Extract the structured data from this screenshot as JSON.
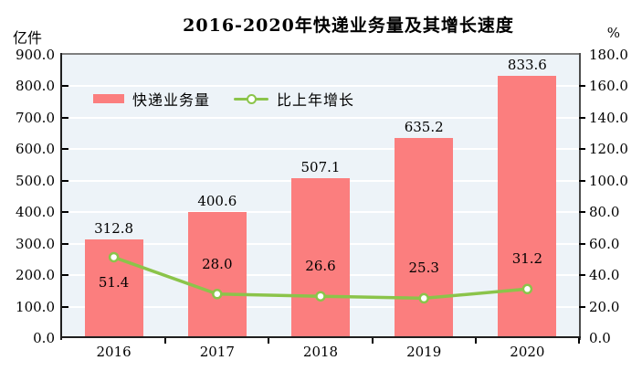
{
  "header": {
    "title": "2016-2020年快递业务量及其增长速度",
    "left_unit": "亿件",
    "right_unit": "%"
  },
  "colors": {
    "bar": "#FB7E7E",
    "line": "#8BC44A",
    "marker_fill": "#FFFFFF",
    "plot_bg": "#EDF3F8",
    "grid": "#FFFFFF",
    "axis_dark": "#1F1F1F",
    "axis_top": "#7F7F7F",
    "axis_right": "#4D4D4D",
    "text": "#000000"
  },
  "chart_data": {
    "type": "bar",
    "title": "2016-2020年快递业务量及其增长速度",
    "categories": [
      "2016",
      "2017",
      "2018",
      "2019",
      "2020"
    ],
    "series": [
      {
        "name": "快递业务量",
        "type": "bar",
        "axis": "left",
        "values": [
          312.8,
          400.6,
          507.1,
          635.2,
          833.6
        ],
        "labels": [
          "312.8",
          "400.6",
          "507.1",
          "635.2",
          "833.6"
        ]
      },
      {
        "name": "比上年增长",
        "type": "line",
        "axis": "right",
        "values": [
          51.4,
          28.0,
          26.6,
          25.3,
          31.2
        ],
        "labels": [
          "51.4",
          "28.0",
          "26.6",
          "25.3",
          "31.2"
        ]
      }
    ],
    "left_axis": {
      "unit": "亿件",
      "min": 0,
      "max": 900,
      "step": 100,
      "tick_labels": [
        "0.0",
        "100.0",
        "200.0",
        "300.0",
        "400.0",
        "500.0",
        "600.0",
        "700.0",
        "800.0",
        "900.0"
      ]
    },
    "right_axis": {
      "unit": "%",
      "min": 0,
      "max": 180,
      "step": 20,
      "tick_labels": [
        "0.0",
        "20.0",
        "40.0",
        "60.0",
        "80.0",
        "100.0",
        "120.0",
        "140.0",
        "160.0",
        "180.0"
      ]
    },
    "grid": true,
    "legend_position": "top-left-inside"
  }
}
